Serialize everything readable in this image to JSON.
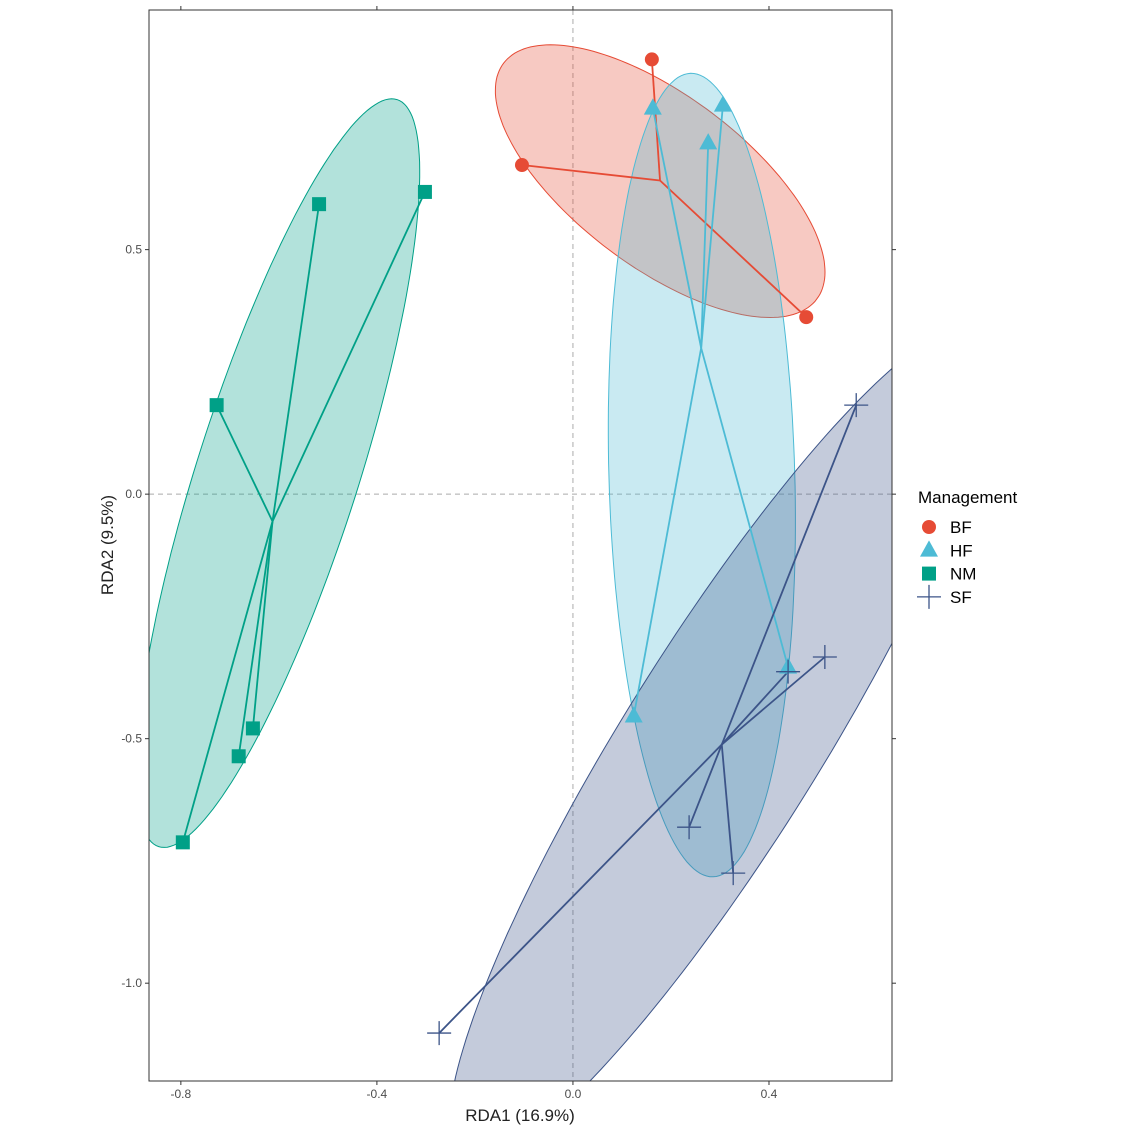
{
  "chart_data": {
    "type": "scatter",
    "title": "",
    "xlabel": "RDA1 (16.9%)",
    "ylabel": "RDA2 (9.5%)",
    "xlim": [
      -0.865,
      0.651
    ],
    "ylim": [
      -1.2,
      0.99
    ],
    "x_ticks": [
      {
        "value": -0.8,
        "label": "-0.8"
      },
      {
        "value": -0.4,
        "label": "-0.4"
      },
      {
        "value": 0.0,
        "label": "0.0"
      },
      {
        "value": 0.4,
        "label": "0.4"
      }
    ],
    "y_ticks": [
      {
        "value": 0.5,
        "label": "0.5"
      },
      {
        "value": 0.0,
        "label": "0.0"
      },
      {
        "value": -0.5,
        "label": "-0.5"
      },
      {
        "value": -1.0,
        "label": "-1.0"
      }
    ],
    "grid": false,
    "reference_lines": {
      "x": 0,
      "y": 0,
      "style": "dashed"
    },
    "legend": {
      "title": "Management",
      "position": "right"
    },
    "series": [
      {
        "name": "BF",
        "color": "#E64B35",
        "shape": "circle",
        "points": [
          [
            0.161,
            0.889
          ],
          [
            -0.104,
            0.673
          ],
          [
            0.476,
            0.362
          ]
        ],
        "ellipse": {
          "cx": 0.178,
          "cy": 0.64,
          "a": 0.4,
          "b": 0.175,
          "angle": -37
        }
      },
      {
        "name": "HF",
        "color": "#4DBBD5",
        "shape": "triangle",
        "points": [
          [
            0.163,
            0.789
          ],
          [
            0.306,
            0.795
          ],
          [
            0.276,
            0.718
          ],
          [
            0.439,
            -0.354
          ],
          [
            0.124,
            -0.454
          ]
        ],
        "ellipse": {
          "cx": 0.263,
          "cy": 0.039,
          "a": 0.82,
          "b": 0.19,
          "angle": 91.6
        }
      },
      {
        "name": "NM",
        "color": "#00A087",
        "shape": "square",
        "points": [
          [
            -0.518,
            0.593
          ],
          [
            -0.302,
            0.618
          ],
          [
            -0.727,
            0.182
          ],
          [
            -0.653,
            -0.479
          ],
          [
            -0.682,
            -0.536
          ],
          [
            -0.796,
            -0.712
          ]
        ],
        "ellipse": {
          "cx": -0.602,
          "cy": 0.043,
          "a": 0.8,
          "b": 0.165,
          "angle": 72.3
        }
      },
      {
        "name": "SF",
        "color": "#3C5488",
        "shape": "plus",
        "points": [
          [
            0.578,
            0.182
          ],
          [
            0.514,
            -0.333
          ],
          [
            0.439,
            -0.363
          ],
          [
            0.237,
            -0.681
          ],
          [
            0.327,
            -0.775
          ],
          [
            -0.273,
            -1.102
          ]
        ],
        "ellipse": {
          "cx": 0.304,
          "cy": -0.509,
          "a": 1.0,
          "b": 0.2,
          "angle": 58
        }
      }
    ]
  }
}
